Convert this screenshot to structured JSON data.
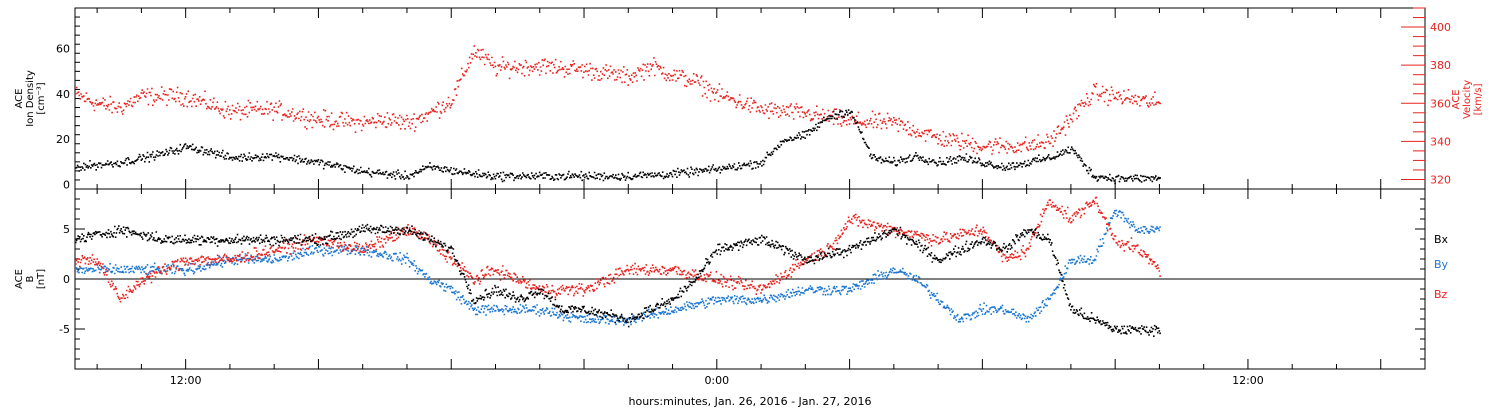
{
  "colors": {
    "black": "#000000",
    "red": "#e8231f",
    "blue": "#1e78d2"
  },
  "xaxis": {
    "title": "hours:minutes, Jan. 26, 2016 - Jan. 27, 2016",
    "tick_labels": [
      "12:00",
      "0:00",
      "12:00"
    ],
    "range_hours": [
      9.5,
      40.0
    ],
    "labeled_ticks_hours": [
      12,
      24,
      36
    ]
  },
  "panels": [
    {
      "id": "density-velocity",
      "left_label": [
        "ACE",
        "Ion Density",
        "[cm⁻³]"
      ],
      "right_label": [
        "ACE",
        "Velocity",
        "[km/s]"
      ],
      "left_ticks": [
        "0",
        "20",
        "40",
        "60"
      ],
      "right_ticks": [
        "320",
        "340",
        "360",
        "380",
        "400"
      ]
    },
    {
      "id": "magnetic-field",
      "left_label": [
        "ACE",
        "B",
        "[nT]"
      ],
      "left_ticks": [
        "-5",
        "0",
        "5"
      ],
      "legend": [
        "Bx",
        "By",
        "Bz"
      ]
    }
  ],
  "chart_data": [
    {
      "type": "scatter",
      "title": "",
      "xlabel": "hours:minutes, Jan. 26, 2016 - Jan. 27, 2016",
      "x_unit": "hours since Jan. 26, 2016 00:00",
      "ylabel": "ACE Ion Density [cm⁻³]",
      "y2label": "ACE Velocity [km/s]",
      "ylim": [
        -2,
        78
      ],
      "y2lim": [
        315,
        410
      ],
      "grid": false,
      "series": [
        {
          "name": "Ion Density",
          "axis": "left",
          "color": "#000000",
          "x": [
            9.5,
            10.5,
            11.5,
            12.0,
            12.5,
            13.0,
            14.0,
            15.0,
            16.0,
            17.0,
            17.5,
            18.5,
            19.0,
            20.0,
            21.0,
            22.0,
            23.0,
            24.0,
            25.0,
            25.5,
            26.0,
            26.5,
            27.0,
            27.5,
            28.0,
            28.5,
            29.0,
            29.5,
            30.0,
            30.5,
            31.0,
            31.5,
            32.0,
            32.5,
            33.0,
            33.5,
            34.0
          ],
          "y": [
            8,
            10,
            14,
            17,
            15,
            12,
            13,
            10,
            6,
            4,
            8,
            5,
            4,
            4,
            4,
            4,
            5,
            7,
            10,
            20,
            22,
            30,
            33,
            12,
            10,
            13,
            10,
            12,
            10,
            8,
            10,
            12,
            16,
            4,
            3,
            3,
            3
          ]
        },
        {
          "name": "Velocity",
          "axis": "right",
          "color": "#e8231f",
          "x": [
            9.5,
            10.0,
            10.5,
            11.0,
            12.0,
            13.0,
            14.0,
            15.0,
            16.0,
            16.5,
            17.0,
            17.5,
            18.0,
            18.5,
            19.0,
            20.0,
            21.0,
            22.0,
            22.5,
            23.0,
            23.5,
            24.0,
            25.0,
            26.0,
            27.0,
            28.0,
            29.0,
            30.0,
            31.0,
            31.5,
            32.0,
            32.5,
            33.0,
            34.0
          ],
          "y": [
            365,
            360,
            358,
            364,
            364,
            356,
            357,
            352,
            350,
            352,
            350,
            355,
            362,
            388,
            379,
            380,
            378,
            374,
            380,
            375,
            372,
            365,
            357,
            355,
            351,
            350,
            342,
            338,
            338,
            340,
            353,
            366,
            364,
            360
          ]
        }
      ]
    },
    {
      "type": "scatter",
      "title": "",
      "xlabel": "hours:minutes, Jan. 26, 2016 - Jan. 27, 2016",
      "x_unit": "hours since Jan. 26, 2016 00:00",
      "ylabel": "ACE B [nT]",
      "ylim": [
        -9,
        9
      ],
      "grid": false,
      "reference_line": 0,
      "series": [
        {
          "name": "Bx",
          "color": "#000000",
          "x": [
            9.5,
            10.5,
            11.5,
            12.0,
            13.0,
            14.0,
            15.0,
            16.0,
            17.0,
            17.5,
            18.0,
            18.5,
            19.0,
            19.5,
            20.0,
            20.5,
            21.0,
            22.0,
            23.0,
            23.5,
            24.0,
            25.0,
            25.5,
            26.0,
            27.0,
            28.0,
            29.0,
            30.0,
            30.5,
            31.0,
            31.5,
            32.0,
            32.5,
            33.0,
            34.0
          ],
          "y": [
            4,
            5,
            4,
            4,
            4,
            4,
            4,
            5,
            5,
            4,
            3,
            -2,
            -1,
            -2,
            -1,
            -3,
            -3,
            -4,
            -2,
            0,
            3,
            4,
            3,
            2,
            3,
            5,
            2,
            4,
            3,
            5,
            4,
            -3,
            -4,
            -5,
            -5
          ]
        },
        {
          "name": "By",
          "color": "#1e78d2",
          "x": [
            9.5,
            10.5,
            11.0,
            12.0,
            13.0,
            14.0,
            15.0,
            16.0,
            17.0,
            17.5,
            18.0,
            18.5,
            19.0,
            20.0,
            21.0,
            22.0,
            23.0,
            24.0,
            25.0,
            26.0,
            27.0,
            27.5,
            28.0,
            28.5,
            29.0,
            29.5,
            30.0,
            30.5,
            31.0,
            31.5,
            32.0,
            32.5,
            33.0,
            33.5,
            34.0
          ],
          "y": [
            1,
            1,
            1,
            1,
            2,
            2,
            3,
            3,
            2,
            0,
            -1,
            -3,
            -3,
            -3,
            -4,
            -4,
            -3,
            -2,
            -2,
            -1,
            -1,
            0,
            1,
            0,
            -2,
            -4,
            -3,
            -3,
            -4,
            -2,
            2,
            2,
            7,
            5,
            5
          ]
        },
        {
          "name": "Bz",
          "color": "#e8231f",
          "x": [
            9.5,
            10.0,
            10.5,
            11.0,
            11.5,
            12.0,
            13.0,
            14.0,
            15.0,
            16.0,
            17.0,
            17.5,
            18.0,
            18.5,
            19.0,
            19.5,
            20.0,
            21.0,
            22.0,
            23.0,
            24.0,
            25.0,
            26.0,
            26.5,
            27.0,
            28.0,
            29.0,
            30.0,
            30.5,
            31.0,
            31.5,
            32.0,
            32.5,
            33.0,
            33.5,
            34.0
          ],
          "y": [
            2,
            2,
            -2,
            0,
            1,
            2,
            2,
            3,
            4,
            3,
            5,
            4,
            2,
            0,
            1,
            0,
            -1,
            -1,
            1,
            1,
            0,
            -1,
            2,
            3,
            6,
            5,
            4,
            5,
            2,
            3,
            8,
            6,
            8,
            4,
            3,
            1
          ]
        }
      ],
      "legend": {
        "entries": [
          "Bx",
          "By",
          "Bz"
        ],
        "placement": "right"
      }
    }
  ]
}
